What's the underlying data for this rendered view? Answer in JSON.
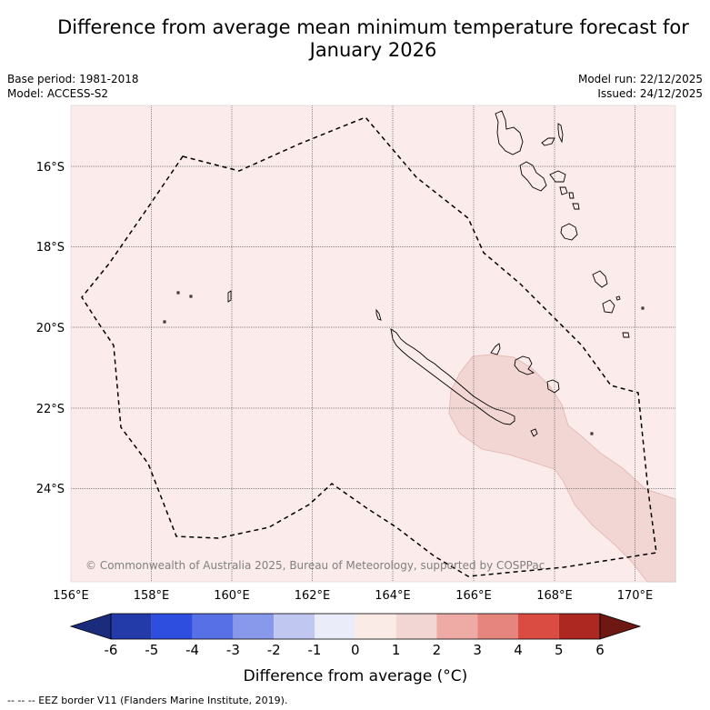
{
  "header": {
    "title_line1": "Difference from average mean minimum temperature forecast for",
    "title_line2": "January 2026",
    "base_period": "Base period: 1981-2018",
    "model": "Model: ACCESS-S2",
    "model_run": "Model run: 22/12/2025",
    "issued": "Issued: 24/12/2025"
  },
  "map": {
    "lat_labels": [
      "16°S",
      "18°S",
      "20°S",
      "22°S",
      "24°S"
    ],
    "lon_labels": [
      "156°E",
      "158°E",
      "160°E",
      "162°E",
      "164°E",
      "166°E",
      "168°E",
      "170°E"
    ],
    "copyright": "© Commonwealth of Australia 2025, Bureau of Meteorology, supported by COSPPac",
    "background_color": "#fbebea",
    "anomaly_color": "#f2d6d3",
    "shaded_category": "1 to 2"
  },
  "colorbar": {
    "ticks": [
      "-6",
      "-5",
      "-4",
      "-3",
      "-2",
      "-1",
      "0",
      "1",
      "2",
      "3",
      "4",
      "5",
      "6"
    ],
    "colors": [
      "#1b2c7c",
      "#223ba8",
      "#2e4ee0",
      "#5870e6",
      "#8898ea",
      "#c0c8f2",
      "#eaecfa",
      "#fbebe6",
      "#f2d6d3",
      "#eeaaa5",
      "#e5857d",
      "#da4b41",
      "#ae2822",
      "#6d1813"
    ],
    "label": "Difference from average (°C)"
  },
  "footer": {
    "legend_text": "--  --  -- EEZ border V11 (Flanders Marine Institute, 2019)."
  }
}
